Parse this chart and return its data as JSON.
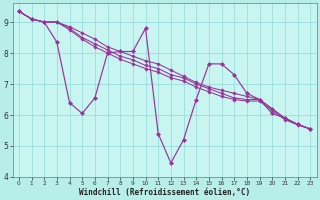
{
  "background_color": "#b8eee8",
  "plot_bg_color": "#c8f5f0",
  "grid_color": "#99dddd",
  "line_color": "#993399",
  "marker_color": "#993399",
  "xlabel": "Windchill (Refroidissement éolien,°C)",
  "xlim": [
    -0.5,
    23.5
  ],
  "ylim": [
    4.0,
    9.6
  ],
  "yticks": [
    4,
    5,
    6,
    7,
    8,
    9
  ],
  "xticks": [
    0,
    1,
    2,
    3,
    4,
    5,
    6,
    7,
    8,
    9,
    10,
    11,
    12,
    13,
    14,
    15,
    16,
    17,
    18,
    19,
    20,
    21,
    22,
    23
  ],
  "series1": [
    9.35,
    9.1,
    9.0,
    8.35,
    6.4,
    6.05,
    6.55,
    8.0,
    8.05,
    8.05,
    8.8,
    5.4,
    4.45,
    5.2,
    6.5,
    7.65,
    7.65,
    7.3,
    6.7,
    6.5,
    6.05,
    5.9,
    5.7,
    5.55
  ],
  "series2": [
    9.35,
    9.1,
    9.0,
    9.0,
    8.85,
    8.65,
    8.45,
    8.2,
    8.05,
    7.9,
    7.75,
    7.65,
    7.45,
    7.25,
    7.05,
    6.9,
    6.8,
    6.7,
    6.6,
    6.5,
    6.2,
    5.9,
    5.7,
    5.55
  ],
  "series3": [
    9.35,
    9.1,
    9.0,
    9.0,
    8.8,
    8.5,
    8.3,
    8.1,
    7.9,
    7.78,
    7.6,
    7.5,
    7.3,
    7.2,
    7.0,
    6.85,
    6.7,
    6.55,
    6.5,
    6.5,
    6.2,
    5.9,
    5.7,
    5.55
  ],
  "series4": [
    9.35,
    9.1,
    9.0,
    9.0,
    8.75,
    8.45,
    8.2,
    8.0,
    7.8,
    7.65,
    7.5,
    7.38,
    7.2,
    7.1,
    6.9,
    6.75,
    6.6,
    6.5,
    6.45,
    6.45,
    6.15,
    5.85,
    5.68,
    5.55
  ]
}
